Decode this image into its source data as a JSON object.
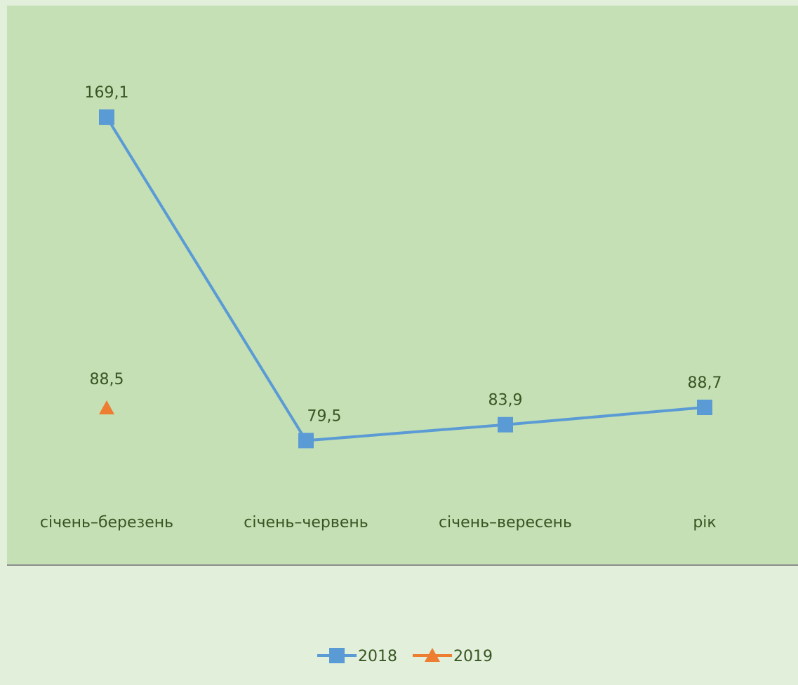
{
  "chart_data": {
    "type": "line",
    "categories": [
      "січень–березень",
      "січень–червень",
      "січень–вересень",
      "рік"
    ],
    "series": [
      {
        "name": "2018",
        "color": "#5b9bd5",
        "marker": "square",
        "values": [
          169.1,
          79.5,
          83.9,
          88.7
        ],
        "value_labels": [
          "169,1",
          "79,5",
          "83,9",
          "88,7"
        ]
      },
      {
        "name": "2019",
        "color": "#ed7d31",
        "marker": "triangle",
        "values": [
          88.5,
          null,
          null,
          null
        ],
        "value_labels": [
          "88,5",
          null,
          null,
          null
        ]
      }
    ],
    "ylim": [
      45,
      200
    ],
    "legend": "bottom"
  }
}
